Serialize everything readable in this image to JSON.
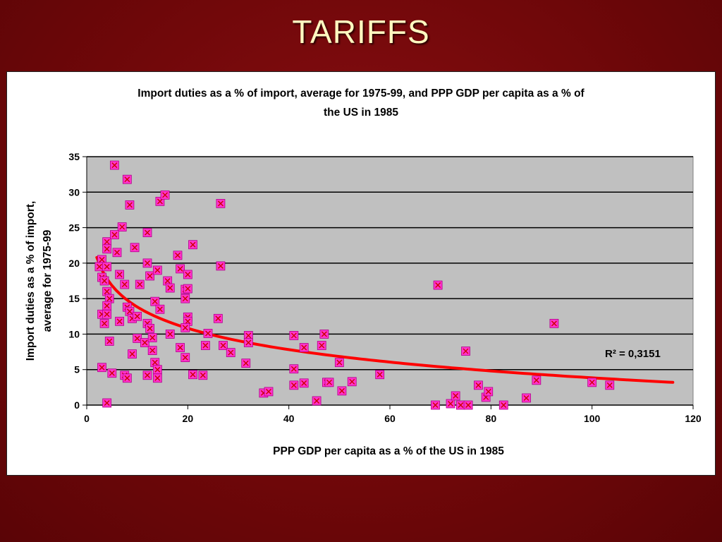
{
  "slide": {
    "title": "TARIFFS"
  },
  "colors": {
    "background": "#6e0709",
    "title": "#fff8c0",
    "plot_area": "#c0c0c0",
    "marker_fill": "#ff33cc",
    "marker_cross": "#cc0000",
    "trendline": "#ff0000"
  },
  "chart_data": {
    "type": "scatter",
    "title_line1": "Import duties as a % of import, average for 1975-99, and PPP GDP per capita as a % of",
    "title_line2": "the US in 1985",
    "xlabel": "PPP GDP per capita as a % of the US in 1985",
    "ylabel_line1": "Import duties as a % of import,",
    "ylabel_line2": "average for 1975-99",
    "xlim": [
      0,
      120
    ],
    "ylim": [
      0,
      35
    ],
    "xticks": [
      0,
      20,
      40,
      60,
      80,
      100,
      120
    ],
    "yticks": [
      0,
      5,
      10,
      15,
      20,
      25,
      30,
      35
    ],
    "grid": "horizontal",
    "r2_label": "R² = 0,3151",
    "trendline": {
      "type": "logarithmic",
      "x_range": [
        2,
        116
      ],
      "y_at_start": 20.8,
      "y_at_end": 3.2
    },
    "points": [
      [
        5.5,
        33.8
      ],
      [
        8,
        31.8
      ],
      [
        8.5,
        28.2
      ],
      [
        7,
        25.1
      ],
      [
        4,
        23
      ],
      [
        5.5,
        24
      ],
      [
        12,
        24.3
      ],
      [
        9.5,
        22.2
      ],
      [
        4,
        22
      ],
      [
        3,
        20.5
      ],
      [
        6,
        21.5
      ],
      [
        2.5,
        19.5
      ],
      [
        4,
        19.5
      ],
      [
        3,
        18
      ],
      [
        3.5,
        17.5
      ],
      [
        6.5,
        18.4
      ],
      [
        7.5,
        17
      ],
      [
        4,
        16
      ],
      [
        4.5,
        15
      ],
      [
        4,
        14
      ],
      [
        8,
        13.8
      ],
      [
        8.5,
        13.2
      ],
      [
        3,
        12.8
      ],
      [
        4,
        12.8
      ],
      [
        9,
        12.2
      ],
      [
        10,
        12.5
      ],
      [
        6.5,
        11.8
      ],
      [
        3.5,
        11.5
      ],
      [
        4.5,
        9
      ],
      [
        3,
        5.3
      ],
      [
        5,
        4.5
      ],
      [
        7.5,
        4.2
      ],
      [
        8,
        3.8
      ],
      [
        4,
        0.3
      ],
      [
        9,
        7.2
      ],
      [
        10,
        9.4
      ],
      [
        11.5,
        8.8
      ],
      [
        12,
        11.5
      ],
      [
        12.5,
        10.8
      ],
      [
        13,
        9.5
      ],
      [
        13,
        7.7
      ],
      [
        13.5,
        6
      ],
      [
        14,
        5
      ],
      [
        12,
        4.2
      ],
      [
        14,
        3.8
      ],
      [
        10.5,
        17
      ],
      [
        12,
        20
      ],
      [
        12.5,
        18.2
      ],
      [
        14,
        19
      ],
      [
        14.5,
        28.7
      ],
      [
        15.5,
        29.6
      ],
      [
        13.5,
        14.6
      ],
      [
        14.5,
        13.5
      ],
      [
        16,
        17.5
      ],
      [
        16.5,
        16.5
      ],
      [
        16.5,
        10
      ],
      [
        18,
        21.1
      ],
      [
        18.5,
        19.2
      ],
      [
        20,
        18.4
      ],
      [
        19.5,
        16.3
      ],
      [
        20,
        16.4
      ],
      [
        19.5,
        15
      ],
      [
        20,
        12.4
      ],
      [
        20,
        11.8
      ],
      [
        19.5,
        10.9
      ],
      [
        18.5,
        8.1
      ],
      [
        19.5,
        6.7
      ],
      [
        21,
        22.6
      ],
      [
        21,
        4.3
      ],
      [
        23,
        4.2
      ],
      [
        23.5,
        8.4
      ],
      [
        24,
        10.1
      ],
      [
        26,
        12.2
      ],
      [
        26.5,
        28.4
      ],
      [
        26.5,
        19.6
      ],
      [
        27,
        8.4
      ],
      [
        28.5,
        7.4
      ],
      [
        31.5,
        5.9
      ],
      [
        32,
        9.8
      ],
      [
        32,
        8.8
      ],
      [
        35,
        1.7
      ],
      [
        36,
        1.9
      ],
      [
        41,
        9.8
      ],
      [
        41,
        5.1
      ],
      [
        41,
        2.8
      ],
      [
        43,
        3.1
      ],
      [
        43,
        8.1
      ],
      [
        45.5,
        0.6
      ],
      [
        46.5,
        8.4
      ],
      [
        47,
        10
      ],
      [
        47.5,
        3.2
      ],
      [
        48,
        3.2
      ],
      [
        50,
        6
      ],
      [
        50.5,
        2
      ],
      [
        52.5,
        3.3
      ],
      [
        58,
        4.3
      ],
      [
        69,
        0
      ],
      [
        69.5,
        16.9
      ],
      [
        72,
        0.2
      ],
      [
        73,
        1.3
      ],
      [
        74,
        0
      ],
      [
        75,
        7.6
      ],
      [
        75.5,
        0
      ],
      [
        77.5,
        2.8
      ],
      [
        79,
        1.1
      ],
      [
        79.5,
        1.9
      ],
      [
        82.5,
        0
      ],
      [
        87,
        1
      ],
      [
        89,
        3.5
      ],
      [
        92.5,
        11.5
      ],
      [
        100,
        3.2
      ],
      [
        103.5,
        2.8
      ]
    ]
  }
}
